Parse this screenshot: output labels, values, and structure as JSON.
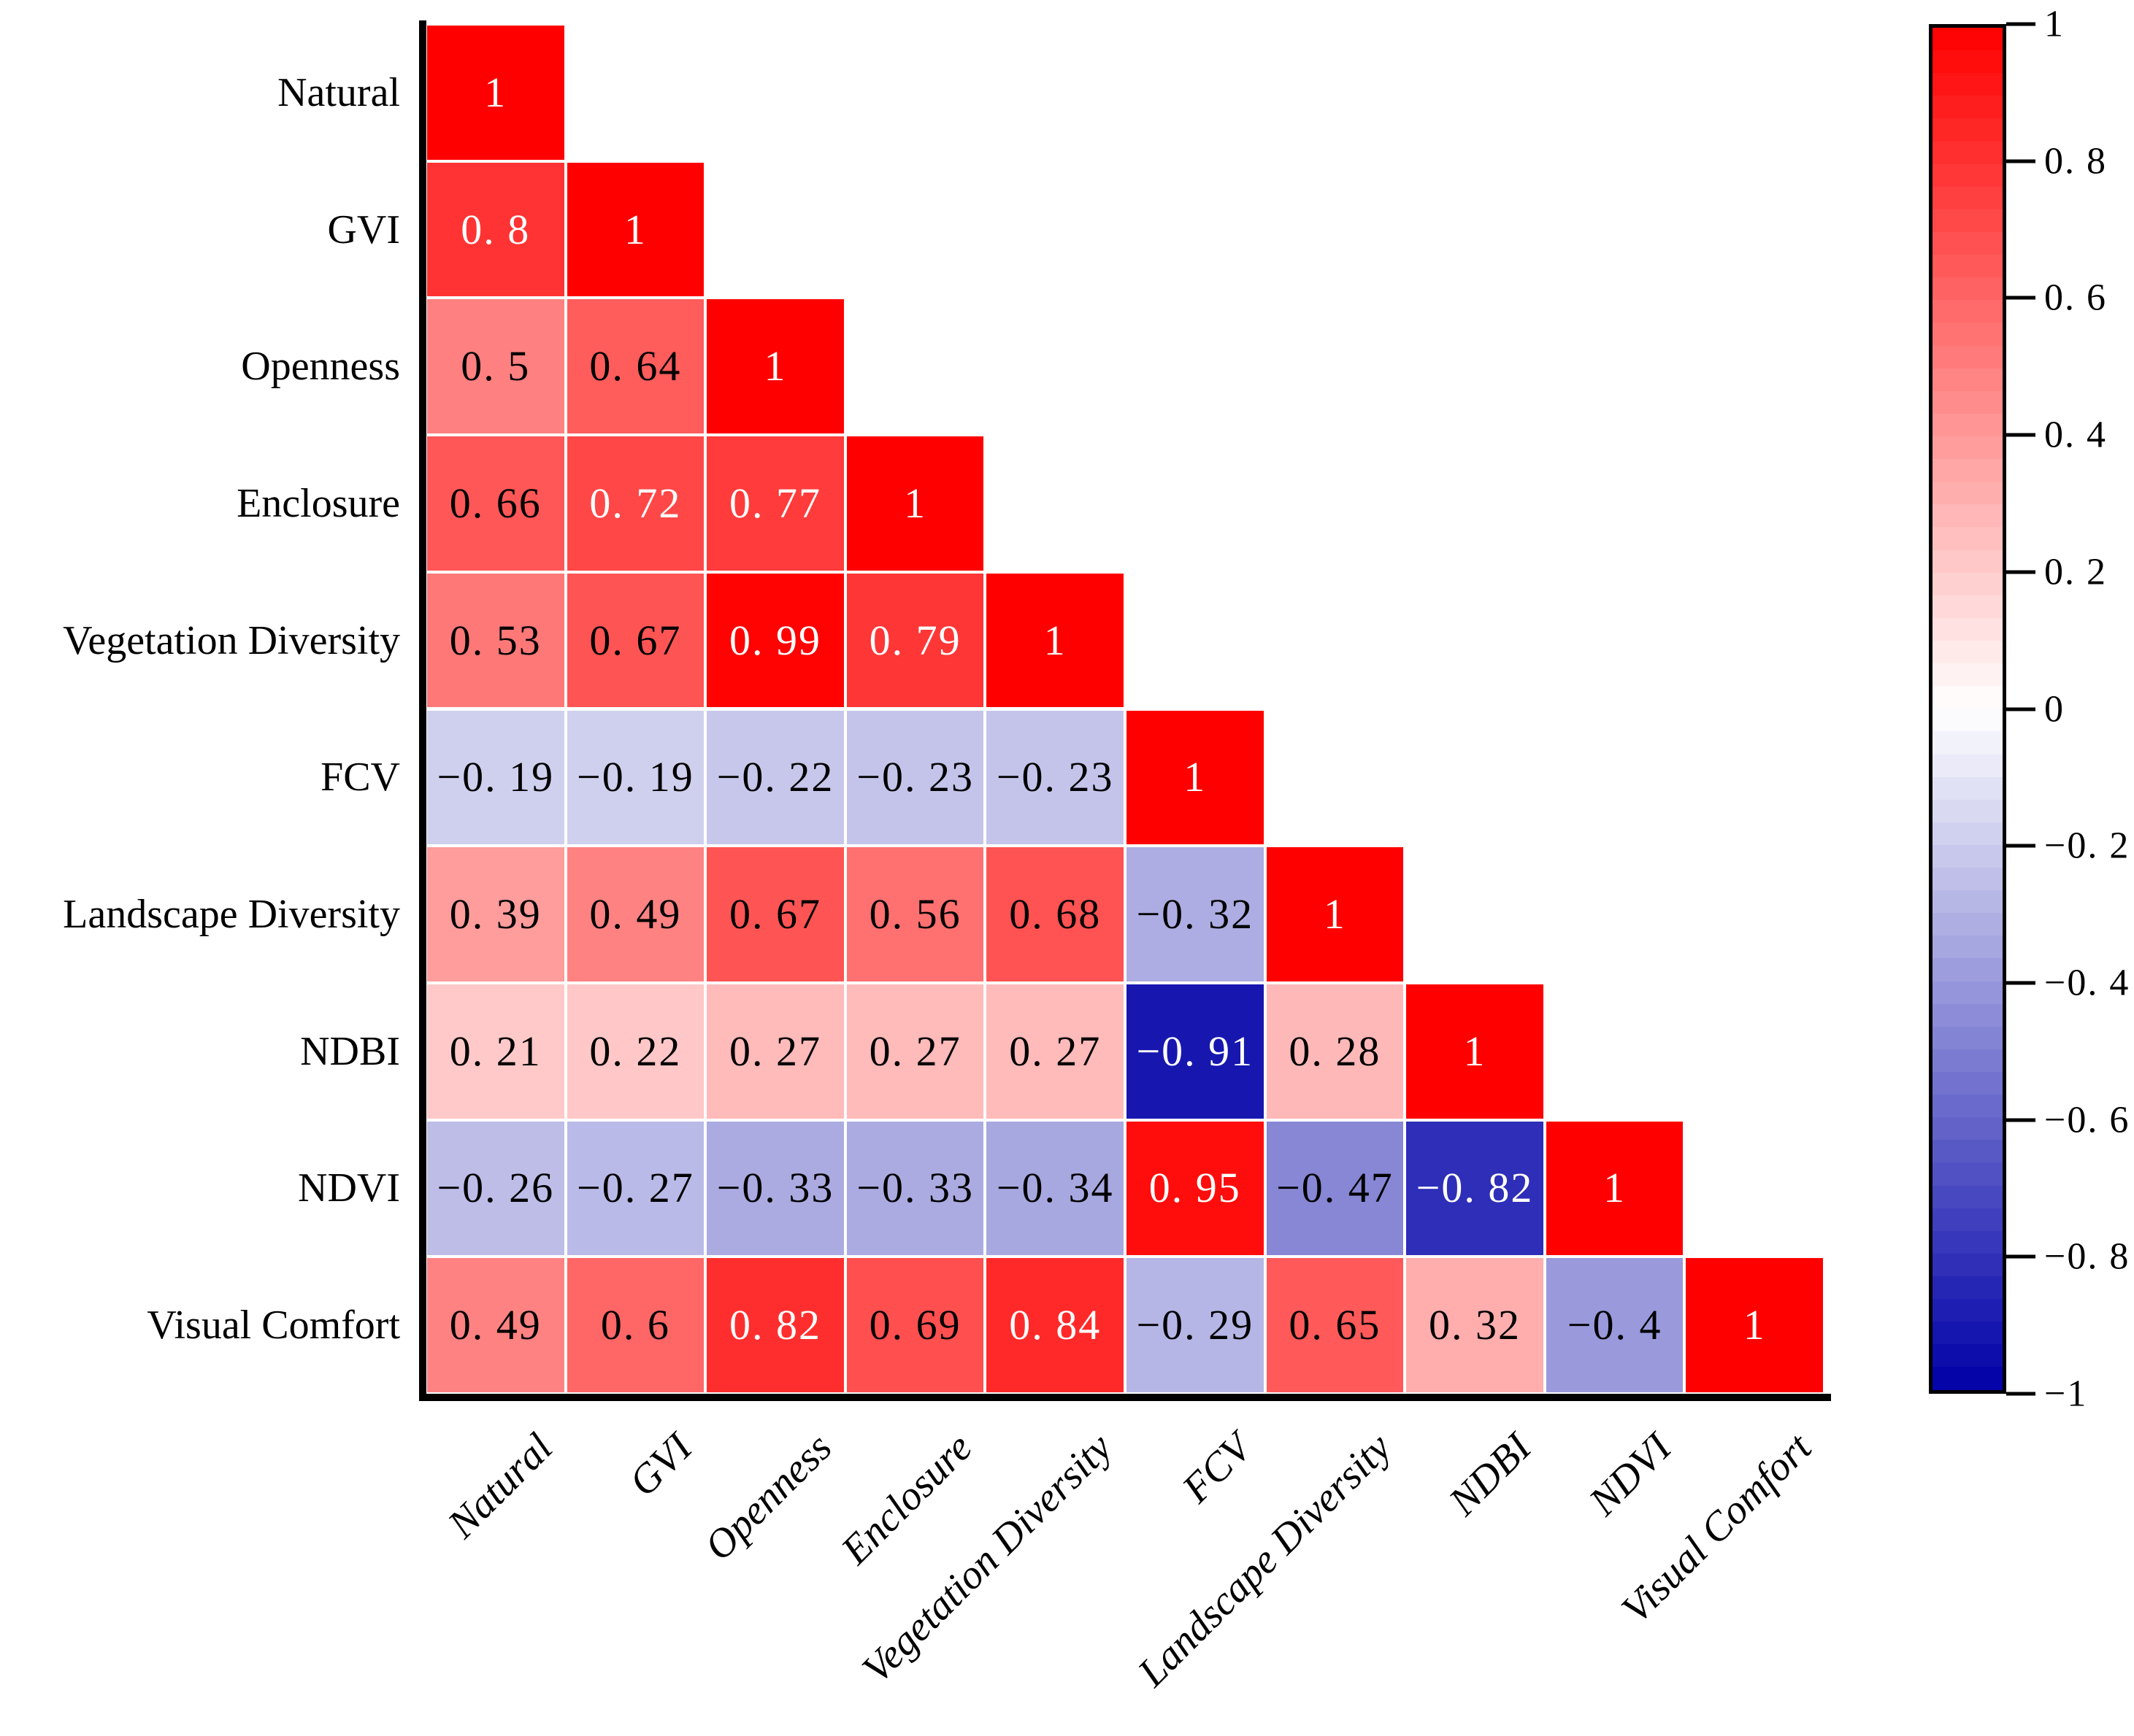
{
  "figure": {
    "kind": "correlation-matrix-figure",
    "background": "#ffffff"
  },
  "chart_data": {
    "type": "heatmap",
    "subtype": "lower-triangular-correlation-matrix",
    "title": "",
    "xlabel": "",
    "ylabel": "",
    "variables": [
      "Natural",
      "GVI",
      "Openness",
      "Enclosure",
      "Vegetation Diversity",
      "FCV",
      "Landscape Diversity",
      "NDBI",
      "NDVI",
      "Visual Comfort"
    ],
    "x_tick_labels": [
      "Natural",
      "GVI",
      "Openness",
      "Enclosure",
      "Vegetation Diversity",
      "FCV",
      "Landscape Diversity",
      "NDBI",
      "NDVI",
      "Visual Comfort"
    ],
    "y_tick_labels": [
      "Natural",
      "GVI",
      "Openness",
      "Enclosure",
      "Vegetation Diversity",
      "FCV",
      "Landscape Diversity",
      "NDBI",
      "NDVI",
      "Visual Comfort"
    ],
    "matrix_lower_triangle": [
      [
        1
      ],
      [
        0.8,
        1
      ],
      [
        0.5,
        0.64,
        1
      ],
      [
        0.66,
        0.72,
        0.77,
        1
      ],
      [
        0.53,
        0.67,
        0.99,
        0.79,
        1
      ],
      [
        -0.19,
        -0.19,
        -0.22,
        -0.23,
        -0.23,
        1
      ],
      [
        0.39,
        0.49,
        0.67,
        0.56,
        0.68,
        -0.32,
        1
      ],
      [
        0.21,
        0.22,
        0.27,
        0.27,
        0.27,
        -0.91,
        0.28,
        1
      ],
      [
        -0.26,
        -0.27,
        -0.33,
        -0.33,
        -0.34,
        0.95,
        -0.47,
        -0.82,
        1
      ],
      [
        0.49,
        0.6,
        0.82,
        0.69,
        0.84,
        -0.29,
        0.65,
        0.32,
        -0.4,
        1
      ]
    ],
    "colorbar": {
      "min": -1,
      "max": 1,
      "ticks": [
        1,
        0.8,
        0.6,
        0.4,
        0.2,
        0,
        -0.2,
        -0.4,
        -0.6,
        -0.8,
        -1
      ],
      "position": "right"
    },
    "colors": {
      "max_color": "#ff0000",
      "mid_color": "#ffffff",
      "min_color": "#0000a8",
      "grid_line_color": "#ffffff",
      "axis_color": "#000000",
      "value_text_dark": "#000000",
      "value_text_light": "#ffffff",
      "light_text_threshold": 0.7
    },
    "legend": null,
    "grid": "white cell separators",
    "value_format": "decimal point rendered wide, minus as −"
  }
}
